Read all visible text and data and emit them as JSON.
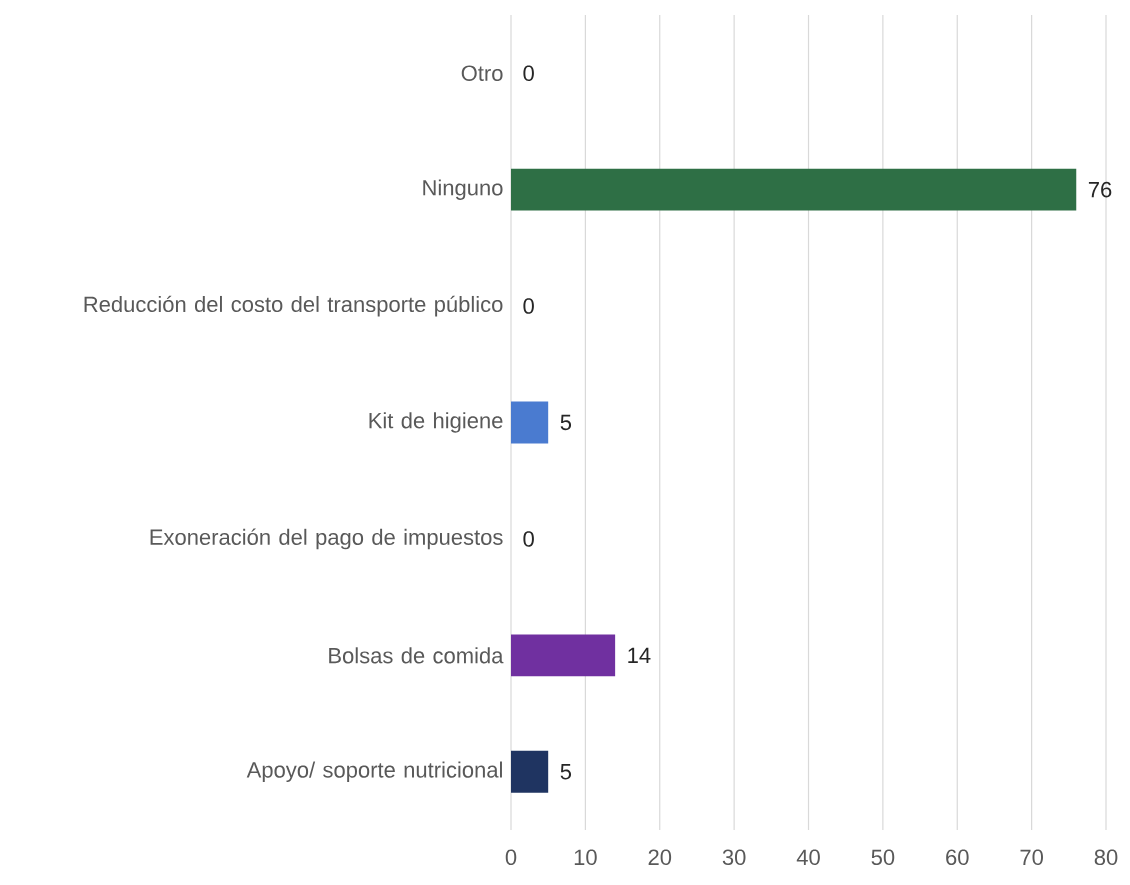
{
  "chart_data": {
    "type": "bar",
    "orientation": "horizontal",
    "categories": [
      "Otro",
      "Ninguno",
      "Reducción del costo del transporte público",
      "Kit de higiene",
      "Exoneración del pago de impuestos",
      "Bolsas de comida",
      "Apoyo/ soporte nutricional"
    ],
    "values": [
      0,
      76,
      0,
      5,
      0,
      14,
      5
    ],
    "colors": [
      "#2e6f45",
      "#2e6f45",
      "#4a7bd0",
      "#4a7bd0",
      "#7030a0",
      "#7030a0",
      "#1f3461"
    ],
    "xlim": [
      0,
      80
    ],
    "xticks": [
      0,
      10,
      20,
      30,
      40,
      50,
      60,
      70,
      80
    ],
    "grid": "x",
    "data_labels": true
  }
}
